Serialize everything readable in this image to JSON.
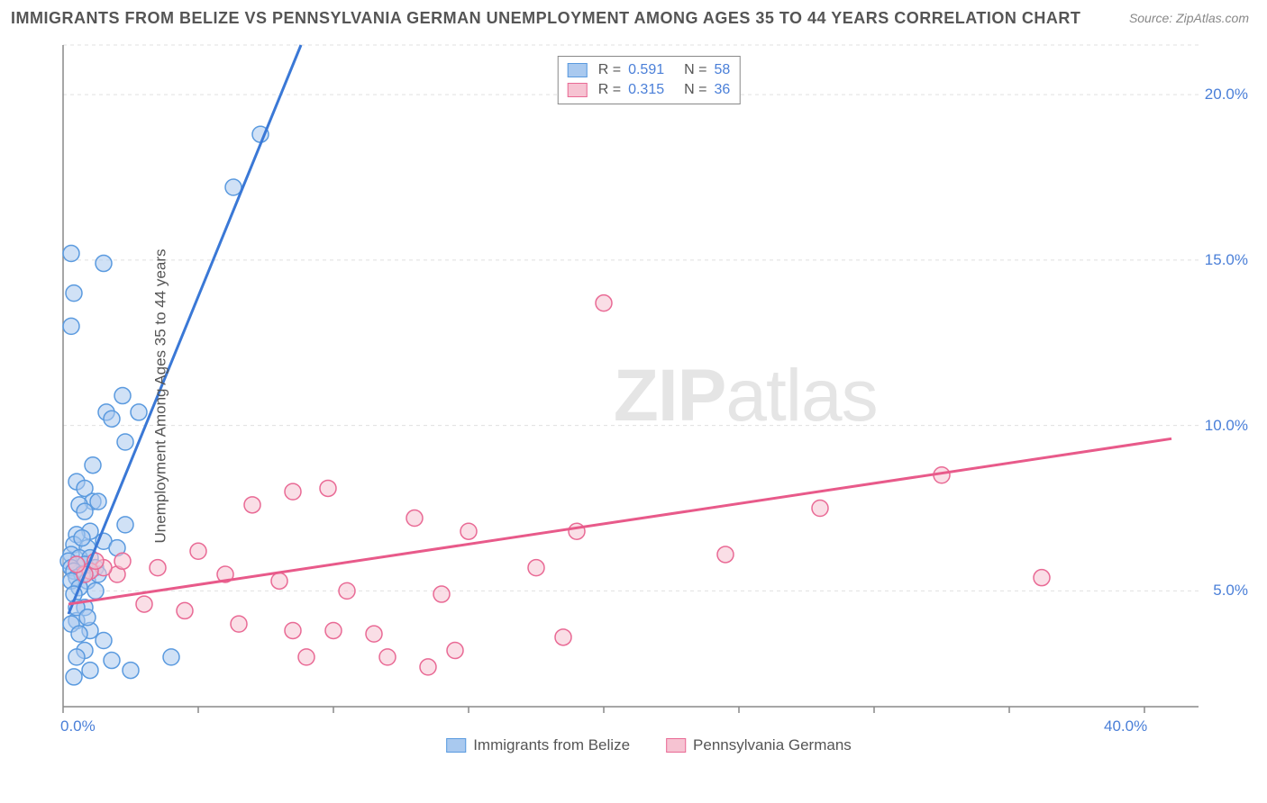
{
  "title": "IMMIGRANTS FROM BELIZE VS PENNSYLVANIA GERMAN UNEMPLOYMENT AMONG AGES 35 TO 44 YEARS CORRELATION CHART",
  "source": "Source: ZipAtlas.com",
  "y_axis_label": "Unemployment Among Ages 35 to 44 years",
  "watermark_bold": "ZIP",
  "watermark_light": "atlas",
  "chart": {
    "type": "scatter",
    "xlim": [
      0,
      42
    ],
    "ylim": [
      1.5,
      21.5
    ],
    "x_ticks": [
      0,
      5,
      10,
      15,
      20,
      25,
      30,
      35,
      40
    ],
    "y_ticks": [
      5,
      10,
      15,
      20
    ],
    "x_tick_labels_shown": {
      "0": "0.0%",
      "40": "40.0%"
    },
    "y_tick_labels_shown": {
      "5": "5.0%",
      "10": "10.0%",
      "15": "15.0%",
      "20": "20.0%"
    },
    "grid_color": "#e0e0e0",
    "axis_color": "#888888",
    "background_color": "#ffffff",
    "tick_label_color": "#4a7fd8",
    "marker_radius": 9,
    "marker_stroke_width": 1.5,
    "trend_line_width": 3
  },
  "series": [
    {
      "name": "Immigrants from Belize",
      "fill_color": "#a9c9ef",
      "fill_opacity": 0.55,
      "stroke_color": "#5a9adf",
      "line_color": "#3a78d6",
      "r_value": "0.591",
      "n_value": "58",
      "trend": {
        "x1": 0.2,
        "y1": 4.3,
        "x2": 8.8,
        "y2": 21.5
      },
      "points": [
        [
          0.3,
          15.2
        ],
        [
          1.5,
          14.9
        ],
        [
          0.4,
          14.0
        ],
        [
          0.3,
          13.0
        ],
        [
          7.3,
          18.8
        ],
        [
          6.3,
          17.2
        ],
        [
          2.2,
          10.9
        ],
        [
          1.6,
          10.4
        ],
        [
          1.8,
          10.2
        ],
        [
          2.3,
          9.5
        ],
        [
          1.1,
          8.8
        ],
        [
          0.5,
          8.3
        ],
        [
          0.8,
          8.1
        ],
        [
          1.1,
          7.7
        ],
        [
          1.3,
          7.7
        ],
        [
          0.6,
          7.6
        ],
        [
          0.8,
          7.4
        ],
        [
          2.3,
          7.0
        ],
        [
          1.0,
          6.8
        ],
        [
          0.5,
          6.7
        ],
        [
          1.5,
          6.5
        ],
        [
          0.4,
          6.4
        ],
        [
          0.9,
          6.3
        ],
        [
          2.0,
          6.3
        ],
        [
          0.3,
          6.1
        ],
        [
          0.6,
          6.0
        ],
        [
          1.0,
          6.0
        ],
        [
          0.2,
          5.9
        ],
        [
          0.5,
          5.8
        ],
        [
          0.8,
          5.8
        ],
        [
          0.3,
          5.7
        ],
        [
          1.2,
          5.7
        ],
        [
          0.4,
          5.6
        ],
        [
          0.7,
          5.5
        ],
        [
          0.5,
          5.4
        ],
        [
          0.3,
          5.3
        ],
        [
          0.9,
          5.3
        ],
        [
          0.6,
          5.1
        ],
        [
          0.4,
          4.9
        ],
        [
          0.8,
          4.5
        ],
        [
          0.5,
          4.1
        ],
        [
          0.3,
          4.0
        ],
        [
          1.0,
          3.8
        ],
        [
          0.6,
          3.7
        ],
        [
          1.5,
          3.5
        ],
        [
          4.0,
          3.0
        ],
        [
          0.8,
          3.2
        ],
        [
          1.8,
          2.9
        ],
        [
          0.5,
          3.0
        ],
        [
          2.5,
          2.6
        ],
        [
          1.0,
          2.6
        ],
        [
          0.4,
          2.4
        ],
        [
          2.8,
          10.4
        ],
        [
          1.2,
          5.0
        ],
        [
          0.5,
          4.5
        ],
        [
          0.9,
          4.2
        ],
        [
          1.3,
          5.5
        ],
        [
          0.7,
          6.6
        ]
      ]
    },
    {
      "name": "Pennsylvania Germans",
      "fill_color": "#f6c3d2",
      "fill_opacity": 0.55,
      "stroke_color": "#e96a95",
      "line_color": "#e85a8a",
      "r_value": "0.315",
      "n_value": "36",
      "trend": {
        "x1": 0.2,
        "y1": 4.6,
        "x2": 41.0,
        "y2": 9.6
      },
      "points": [
        [
          20.0,
          13.7
        ],
        [
          32.5,
          8.5
        ],
        [
          28.0,
          7.5
        ],
        [
          24.5,
          6.1
        ],
        [
          36.2,
          5.4
        ],
        [
          8.5,
          8.0
        ],
        [
          9.8,
          8.1
        ],
        [
          7.0,
          7.6
        ],
        [
          13.0,
          7.2
        ],
        [
          15.0,
          6.8
        ],
        [
          19.0,
          6.8
        ],
        [
          17.5,
          5.7
        ],
        [
          10.5,
          5.0
        ],
        [
          14.0,
          4.9
        ],
        [
          5.0,
          6.2
        ],
        [
          6.0,
          5.5
        ],
        [
          8.0,
          5.3
        ],
        [
          3.5,
          5.7
        ],
        [
          2.0,
          5.5
        ],
        [
          1.5,
          5.7
        ],
        [
          3.0,
          4.6
        ],
        [
          4.5,
          4.4
        ],
        [
          6.5,
          4.0
        ],
        [
          8.5,
          3.8
        ],
        [
          10.0,
          3.8
        ],
        [
          11.5,
          3.7
        ],
        [
          12.0,
          3.0
        ],
        [
          13.5,
          2.7
        ],
        [
          14.5,
          3.2
        ],
        [
          18.5,
          3.6
        ],
        [
          9.0,
          3.0
        ],
        [
          1.0,
          5.6
        ],
        [
          1.2,
          5.9
        ],
        [
          2.2,
          5.9
        ],
        [
          0.8,
          5.5
        ],
        [
          0.5,
          5.8
        ]
      ]
    }
  ],
  "legend_bottom": [
    {
      "label": "Immigrants from Belize",
      "series_idx": 0
    },
    {
      "label": "Pennsylvania Germans",
      "series_idx": 1
    }
  ]
}
